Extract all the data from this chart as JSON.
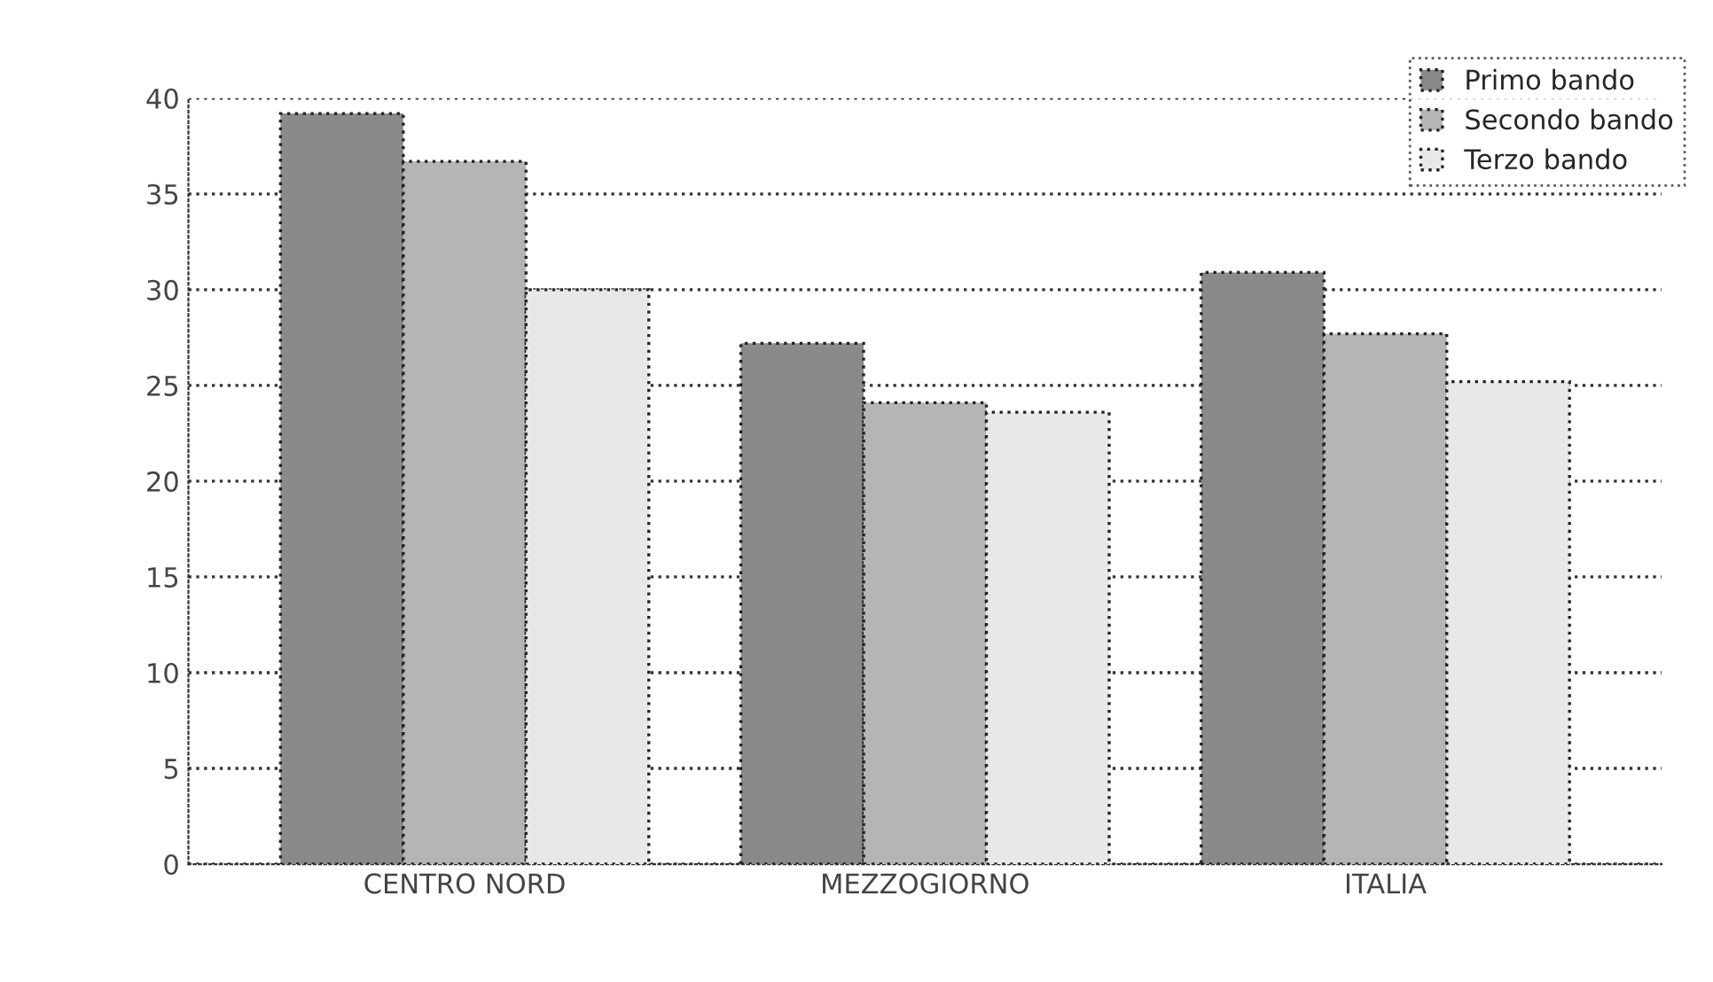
{
  "chart_data": {
    "type": "bar",
    "categories": [
      "CENTRO NORD",
      "MEZZOGIORNO",
      "ITALIA"
    ],
    "series": [
      {
        "name": "Primo bando",
        "color": "#8a8a8a",
        "values": [
          39.2,
          27.2,
          30.9
        ]
      },
      {
        "name": "Secondo bando",
        "color": "#b5b5b5",
        "values": [
          36.7,
          24.1,
          27.7
        ]
      },
      {
        "name": "Terzo bando",
        "color": "#e8e8e8",
        "values": [
          30.0,
          23.6,
          25.2
        ]
      }
    ],
    "ylim": [
      0,
      40
    ],
    "yticks": [
      0,
      5,
      10,
      15,
      20,
      25,
      30,
      35,
      40
    ],
    "grid": "y",
    "legend": "top right"
  }
}
